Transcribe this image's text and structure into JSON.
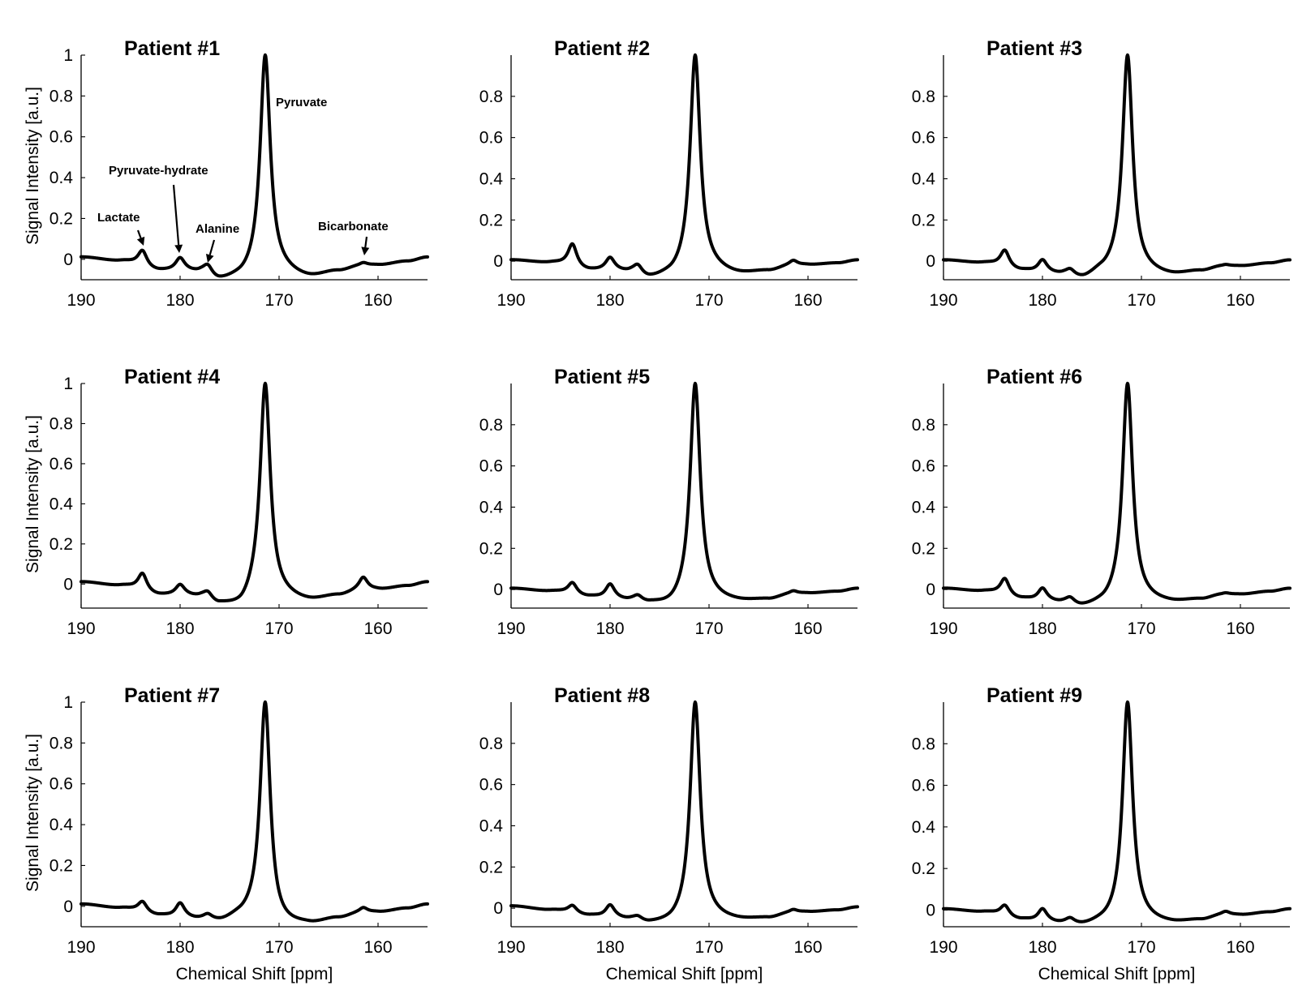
{
  "figure": {
    "xlabel": "Chemical Shift [ppm]",
    "ylabel": "Signal Intensity [a.u.]"
  },
  "chart_data": [
    {
      "type": "line",
      "title": "Patient #1",
      "xlim": [
        190,
        155
      ],
      "ylim": [
        -0.1,
        1
      ],
      "xticks": [
        190,
        180,
        170,
        160
      ],
      "yticks": [
        1,
        0.8,
        0.6,
        0.4,
        0.2,
        0
      ],
      "ytick_labels": [
        "1",
        "0.8",
        "0.6",
        "0.4",
        "0.2",
        "0"
      ],
      "ylabel": "Signal Intensity [a.u.]",
      "xlabel": "",
      "baseline": [
        [
          190,
          0.01
        ],
        [
          186,
          -0.01
        ],
        [
          182,
          -0.06
        ],
        [
          180,
          -0.06
        ],
        [
          178,
          -0.07
        ],
        [
          176,
          -0.11
        ],
        [
          174,
          -0.1
        ],
        [
          172,
          -0.08
        ],
        [
          170,
          -0.07
        ],
        [
          167,
          -0.09
        ],
        [
          164,
          -0.06
        ],
        [
          162,
          -0.04
        ],
        [
          160,
          -0.03
        ],
        [
          157,
          -0.01
        ],
        [
          155,
          0.01
        ]
      ],
      "peaks": [
        {
          "ppm": 183.8,
          "height": 0.04
        },
        {
          "ppm": 180.0,
          "height": 0.0
        },
        {
          "ppm": 177.2,
          "height": -0.04
        },
        {
          "ppm": 171.4,
          "height": 1.0
        },
        {
          "ppm": 161.5,
          "height": -0.02
        }
      ],
      "annotations": [
        {
          "label": "Pyruvate",
          "ppm": 171.4
        },
        {
          "label": "Pyruvate-hydrate",
          "ppm": 180.0
        },
        {
          "label": "Lactate",
          "ppm": 183.8
        },
        {
          "label": "Alanine",
          "ppm": 177.2
        },
        {
          "label": "Bicarbonate",
          "ppm": 161.5
        }
      ]
    },
    {
      "type": "line",
      "title": "Patient #2",
      "xlim": [
        190,
        155
      ],
      "ylim": [
        -0.09,
        1
      ],
      "xticks": [
        190,
        180,
        170,
        160
      ],
      "yticks": [
        0.8,
        0.6,
        0.4,
        0.2,
        0
      ],
      "ytick_labels": [
        "0.8",
        "0.6",
        "0.4",
        "0.2",
        "0"
      ],
      "ylabel": "",
      "xlabel": "",
      "baseline": [
        [
          190,
          0.005
        ],
        [
          186,
          -0.01
        ],
        [
          182,
          -0.05
        ],
        [
          180,
          -0.05
        ],
        [
          178,
          -0.06
        ],
        [
          176,
          -0.09
        ],
        [
          174,
          -0.08
        ],
        [
          172,
          -0.06
        ],
        [
          170,
          -0.05
        ],
        [
          167,
          -0.065
        ],
        [
          164,
          -0.05
        ],
        [
          162,
          -0.03
        ],
        [
          160,
          -0.02
        ],
        [
          157,
          -0.01
        ],
        [
          155,
          0.005
        ]
      ],
      "peaks": [
        {
          "ppm": 183.8,
          "height": 0.08
        },
        {
          "ppm": 180.0,
          "height": 0.01
        },
        {
          "ppm": 177.2,
          "height": -0.03
        },
        {
          "ppm": 171.4,
          "height": 1.0
        },
        {
          "ppm": 161.5,
          "height": 0.0
        }
      ],
      "annotations": []
    },
    {
      "type": "line",
      "title": "Patient #3",
      "xlim": [
        190,
        155
      ],
      "ylim": [
        -0.09,
        1
      ],
      "xticks": [
        190,
        180,
        170,
        160
      ],
      "yticks": [
        0.8,
        0.6,
        0.4,
        0.2,
        0
      ],
      "ytick_labels": [
        "0.8",
        "0.6",
        "0.4",
        "0.2",
        "0"
      ],
      "ylabel": "",
      "xlabel": "",
      "baseline": [
        [
          190,
          0.005
        ],
        [
          186,
          -0.01
        ],
        [
          182,
          -0.05
        ],
        [
          180,
          -0.06
        ],
        [
          178,
          -0.07
        ],
        [
          176,
          -0.09
        ],
        [
          174,
          -0.06
        ],
        [
          172,
          -0.04
        ],
        [
          170,
          -0.06
        ],
        [
          167,
          -0.07
        ],
        [
          164,
          -0.05
        ],
        [
          162,
          -0.03
        ],
        [
          160,
          -0.025
        ],
        [
          157,
          -0.01
        ],
        [
          155,
          0.005
        ]
      ],
      "peaks": [
        {
          "ppm": 183.8,
          "height": 0.05
        },
        {
          "ppm": 180.0,
          "height": 0.0
        },
        {
          "ppm": 177.2,
          "height": -0.05
        },
        {
          "ppm": 171.4,
          "height": 1.0
        },
        {
          "ppm": 161.5,
          "height": -0.02
        }
      ],
      "annotations": []
    },
    {
      "type": "line",
      "title": "Patient #4",
      "xlim": [
        190,
        155
      ],
      "ylim": [
        -0.12,
        1
      ],
      "xticks": [
        190,
        180,
        170,
        160
      ],
      "yticks": [
        1,
        0.8,
        0.6,
        0.4,
        0.2,
        0
      ],
      "ytick_labels": [
        "1",
        "0.8",
        "0.6",
        "0.4",
        "0.2",
        "0"
      ],
      "ylabel": "Signal Intensity [a.u.]",
      "xlabel": "",
      "baseline": [
        [
          190,
          0.01
        ],
        [
          186,
          -0.01
        ],
        [
          182,
          -0.06
        ],
        [
          180,
          -0.06
        ],
        [
          178,
          -0.07
        ],
        [
          176,
          -0.11
        ],
        [
          174,
          -0.12
        ],
        [
          172,
          -0.06
        ],
        [
          170,
          -0.07
        ],
        [
          167,
          -0.085
        ],
        [
          164,
          -0.06
        ],
        [
          162,
          -0.04
        ],
        [
          160,
          -0.03
        ],
        [
          157,
          -0.01
        ],
        [
          155,
          0.01
        ]
      ],
      "peaks": [
        {
          "ppm": 183.8,
          "height": 0.05
        },
        {
          "ppm": 180.0,
          "height": -0.01
        },
        {
          "ppm": 177.2,
          "height": -0.05
        },
        {
          "ppm": 171.4,
          "height": 1.0
        },
        {
          "ppm": 161.5,
          "height": 0.03
        }
      ],
      "annotations": []
    },
    {
      "type": "line",
      "title": "Patient #5",
      "xlim": [
        190,
        155
      ],
      "ylim": [
        -0.09,
        1
      ],
      "xticks": [
        190,
        180,
        170,
        160
      ],
      "yticks": [
        0.8,
        0.6,
        0.4,
        0.2,
        0
      ],
      "ytick_labels": [
        "0.8",
        "0.6",
        "0.4",
        "0.2",
        "0"
      ],
      "ylabel": "",
      "xlabel": "",
      "baseline": [
        [
          190,
          0.005
        ],
        [
          186,
          -0.01
        ],
        [
          182,
          -0.04
        ],
        [
          180,
          -0.05
        ],
        [
          178,
          -0.06
        ],
        [
          176,
          -0.075
        ],
        [
          174,
          -0.085
        ],
        [
          172,
          -0.06
        ],
        [
          170,
          -0.055
        ],
        [
          167,
          -0.06
        ],
        [
          164,
          -0.05
        ],
        [
          162,
          -0.03
        ],
        [
          160,
          -0.02
        ],
        [
          157,
          -0.01
        ],
        [
          155,
          0.005
        ]
      ],
      "peaks": [
        {
          "ppm": 183.8,
          "height": 0.03
        },
        {
          "ppm": 180.0,
          "height": 0.02
        },
        {
          "ppm": 177.2,
          "height": -0.04
        },
        {
          "ppm": 171.4,
          "height": 1.0
        },
        {
          "ppm": 161.5,
          "height": -0.01
        }
      ],
      "annotations": []
    },
    {
      "type": "line",
      "title": "Patient #6",
      "xlim": [
        190,
        155
      ],
      "ylim": [
        -0.09,
        1
      ],
      "xticks": [
        190,
        180,
        170,
        160
      ],
      "yticks": [
        0.8,
        0.6,
        0.4,
        0.2,
        0
      ],
      "ytick_labels": [
        "0.8",
        "0.6",
        "0.4",
        "0.2",
        "0"
      ],
      "ylabel": "",
      "xlabel": "",
      "baseline": [
        [
          190,
          0.005
        ],
        [
          186,
          -0.01
        ],
        [
          182,
          -0.05
        ],
        [
          180,
          -0.06
        ],
        [
          178,
          -0.07
        ],
        [
          176,
          -0.09
        ],
        [
          174,
          -0.08
        ],
        [
          172,
          -0.06
        ],
        [
          170,
          -0.06
        ],
        [
          167,
          -0.065
        ],
        [
          164,
          -0.05
        ],
        [
          162,
          -0.03
        ],
        [
          160,
          -0.025
        ],
        [
          157,
          -0.01
        ],
        [
          155,
          0.005
        ]
      ],
      "peaks": [
        {
          "ppm": 183.8,
          "height": 0.05
        },
        {
          "ppm": 180.0,
          "height": 0.0
        },
        {
          "ppm": 177.2,
          "height": -0.05
        },
        {
          "ppm": 171.4,
          "height": 1.0
        },
        {
          "ppm": 161.5,
          "height": -0.02
        }
      ],
      "annotations": []
    },
    {
      "type": "line",
      "title": "Patient #7",
      "xlim": [
        190,
        155
      ],
      "ylim": [
        -0.1,
        1
      ],
      "xticks": [
        190,
        180,
        170,
        160
      ],
      "yticks": [
        1,
        0.8,
        0.6,
        0.4,
        0.2,
        0
      ],
      "ytick_labels": [
        "1",
        "0.8",
        "0.6",
        "0.4",
        "0.2",
        "0"
      ],
      "ylabel": "Signal Intensity [a.u.]",
      "xlabel": "Chemical Shift [ppm]",
      "baseline": [
        [
          190,
          0.01
        ],
        [
          186,
          -0.01
        ],
        [
          182,
          -0.05
        ],
        [
          180,
          -0.06
        ],
        [
          178,
          -0.07
        ],
        [
          176,
          -0.08
        ],
        [
          174,
          -0.06
        ],
        [
          172,
          -0.05
        ],
        [
          170,
          -0.1
        ],
        [
          167,
          -0.09
        ],
        [
          164,
          -0.06
        ],
        [
          162,
          -0.04
        ],
        [
          160,
          -0.03
        ],
        [
          157,
          -0.01
        ],
        [
          155,
          0.01
        ]
      ],
      "peaks": [
        {
          "ppm": 183.8,
          "height": 0.02
        },
        {
          "ppm": 180.0,
          "height": 0.01
        },
        {
          "ppm": 177.2,
          "height": -0.05
        },
        {
          "ppm": 171.4,
          "height": 1.0
        },
        {
          "ppm": 161.5,
          "height": -0.01
        }
      ],
      "annotations": []
    },
    {
      "type": "line",
      "title": "Patient #8",
      "xlim": [
        190,
        155
      ],
      "ylim": [
        -0.09,
        1
      ],
      "xticks": [
        190,
        180,
        170,
        160
      ],
      "yticks": [
        0.8,
        0.6,
        0.4,
        0.2,
        0
      ],
      "ytick_labels": [
        "0.8",
        "0.6",
        "0.4",
        "0.2",
        "0"
      ],
      "ylabel": "",
      "xlabel": "Chemical Shift [ppm]",
      "baseline": [
        [
          190,
          0.01
        ],
        [
          186,
          -0.01
        ],
        [
          182,
          -0.04
        ],
        [
          180,
          -0.05
        ],
        [
          178,
          -0.06
        ],
        [
          176,
          -0.08
        ],
        [
          174,
          -0.08
        ],
        [
          172,
          -0.06
        ],
        [
          170,
          -0.055
        ],
        [
          167,
          -0.06
        ],
        [
          164,
          -0.05
        ],
        [
          162,
          -0.03
        ],
        [
          160,
          -0.02
        ],
        [
          157,
          -0.01
        ],
        [
          155,
          0.005
        ]
      ],
      "peaks": [
        {
          "ppm": 183.8,
          "height": 0.01
        },
        {
          "ppm": 180.0,
          "height": 0.01
        },
        {
          "ppm": 177.2,
          "height": -0.05
        },
        {
          "ppm": 171.4,
          "height": 1.0
        },
        {
          "ppm": 161.5,
          "height": -0.01
        }
      ],
      "annotations": []
    },
    {
      "type": "line",
      "title": "Patient #9",
      "xlim": [
        190,
        155
      ],
      "ylim": [
        -0.08,
        1
      ],
      "xticks": [
        190,
        180,
        170,
        160
      ],
      "yticks": [
        0.8,
        0.6,
        0.4,
        0.2,
        0
      ],
      "ytick_labels": [
        "0.8",
        "0.6",
        "0.4",
        "0.2",
        "0"
      ],
      "ylabel": "",
      "xlabel": "Chemical Shift [ppm]",
      "baseline": [
        [
          190,
          0.005
        ],
        [
          186,
          -0.01
        ],
        [
          182,
          -0.05
        ],
        [
          180,
          -0.06
        ],
        [
          178,
          -0.07
        ],
        [
          176,
          -0.08
        ],
        [
          174,
          -0.07
        ],
        [
          172,
          -0.065
        ],
        [
          170,
          -0.06
        ],
        [
          167,
          -0.065
        ],
        [
          164,
          -0.05
        ],
        [
          162,
          -0.03
        ],
        [
          160,
          -0.025
        ],
        [
          157,
          -0.01
        ],
        [
          155,
          0.005
        ]
      ],
      "peaks": [
        {
          "ppm": 183.8,
          "height": 0.02
        },
        {
          "ppm": 180.0,
          "height": 0.0
        },
        {
          "ppm": 177.2,
          "height": -0.05
        },
        {
          "ppm": 171.4,
          "height": 1.0
        },
        {
          "ppm": 161.5,
          "height": -0.01
        }
      ],
      "annotations": []
    }
  ]
}
